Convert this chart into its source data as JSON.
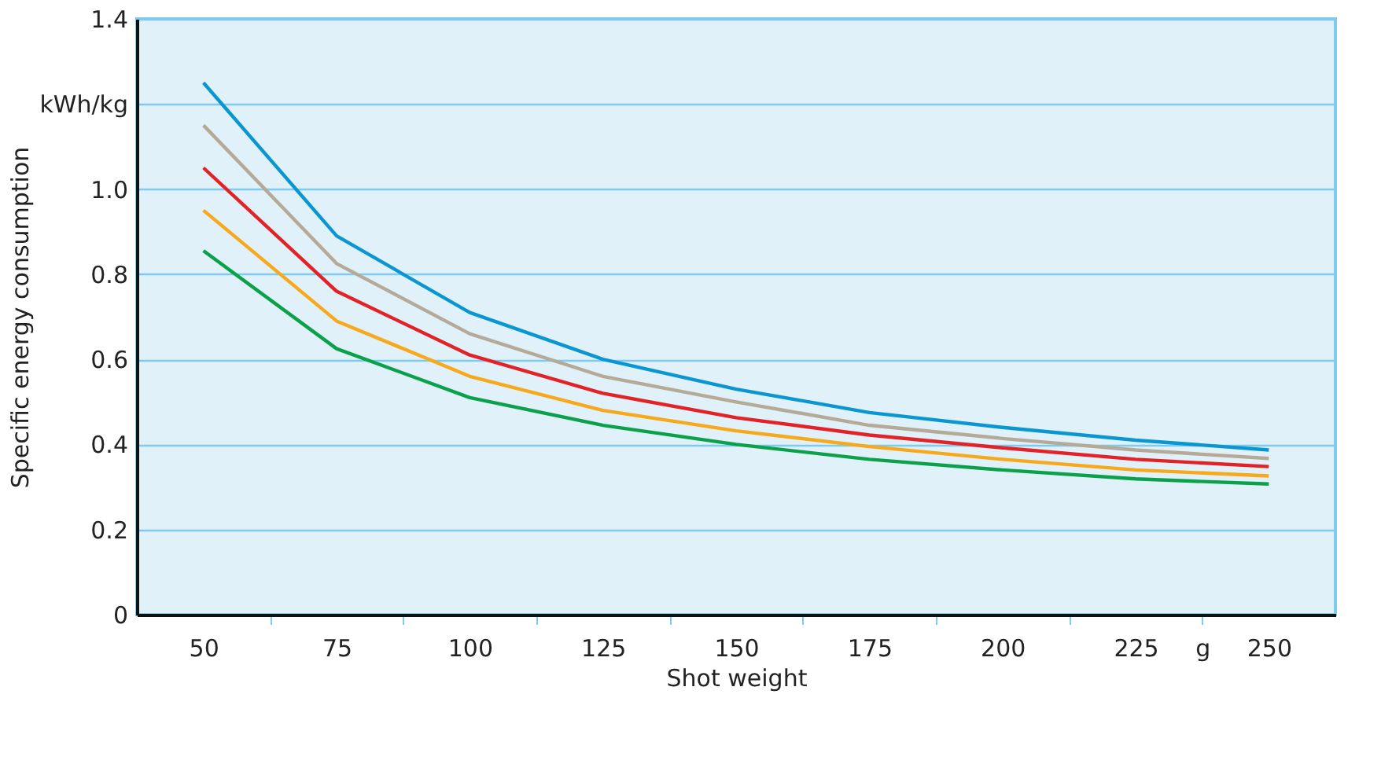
{
  "chart_data": {
    "type": "line",
    "xlabel": "Shot weight",
    "ylabel": "Specific energy consumption",
    "x": [
      50,
      75,
      100,
      125,
      150,
      175,
      200,
      225,
      250
    ],
    "series": [
      {
        "color": "#0a96d0",
        "values": [
          1.25,
          0.89,
          0.71,
          0.6,
          0.53,
          0.475,
          0.44,
          0.41,
          0.387
        ]
      },
      {
        "color": "#b5aa98",
        "values": [
          1.15,
          0.825,
          0.66,
          0.56,
          0.5,
          0.445,
          0.414,
          0.387,
          0.367
        ]
      },
      {
        "color": "#e32228",
        "values": [
          1.05,
          0.76,
          0.61,
          0.52,
          0.463,
          0.422,
          0.392,
          0.365,
          0.348
        ]
      },
      {
        "color": "#f7a81b",
        "values": [
          0.95,
          0.69,
          0.56,
          0.48,
          0.432,
          0.395,
          0.365,
          0.34,
          0.326
        ]
      },
      {
        "color": "#0aa14a",
        "values": [
          0.855,
          0.625,
          0.51,
          0.445,
          0.4,
          0.365,
          0.34,
          0.319,
          0.307
        ]
      }
    ],
    "xlim": [
      37.5,
      262.5
    ],
    "xticks": [
      50,
      {
        "value": 62.5,
        "label": null
      },
      75,
      {
        "value": 87.5,
        "label": null
      },
      100,
      {
        "value": 112.5,
        "label": null
      },
      125,
      {
        "value": 137.5,
        "label": null
      },
      150,
      {
        "value": 162.5,
        "label": null
      },
      175,
      {
        "value": 187.5,
        "label": null
      },
      200,
      {
        "value": 212.5,
        "label": null
      },
      225,
      {
        "value": 237.5,
        "label": "g"
      },
      250
    ],
    "ylim": [
      0,
      1.4
    ],
    "yticks": [
      0,
      0.2,
      0.4,
      0.6,
      0.8,
      {
        "value": 1.0,
        "label": "1.0"
      },
      {
        "value": 1.2,
        "label": "kWh/kg"
      },
      1.4
    ],
    "grid": "y",
    "legend": false,
    "marker": "none",
    "line_style": "solid"
  }
}
